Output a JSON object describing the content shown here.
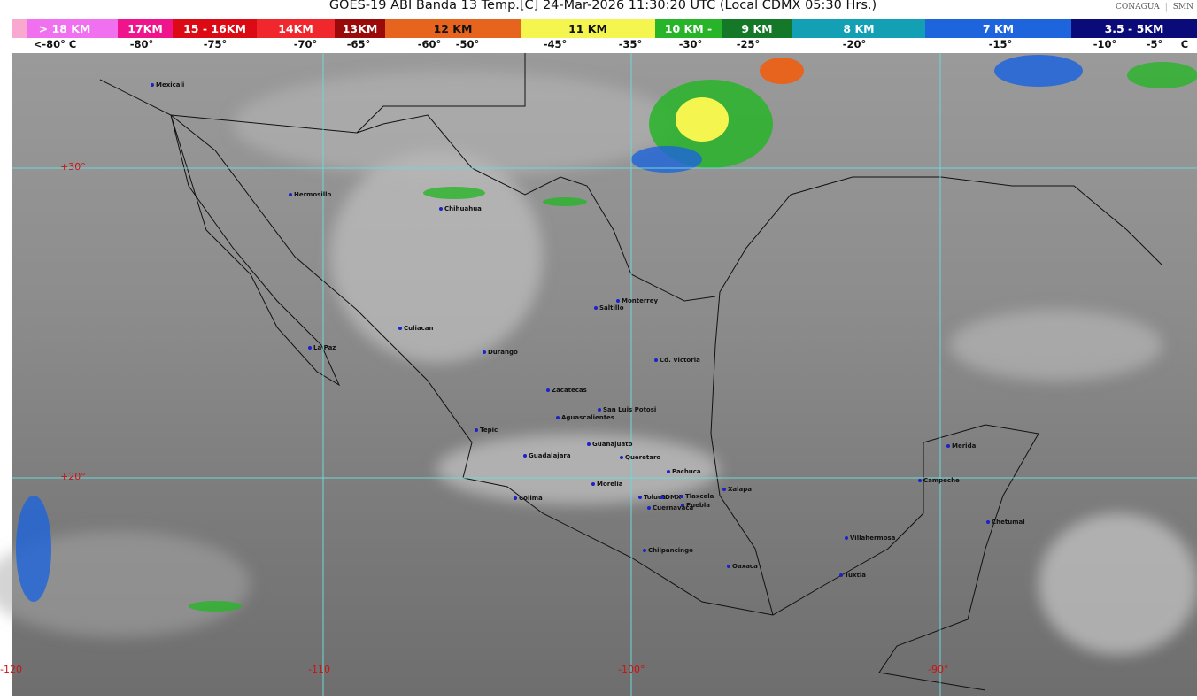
{
  "header": {
    "title": "GOES-19 ABI Banda 13 Temp.[C] 24-Mar-2026 11:30:20 UTC (Local CDMX  05:30 Hrs.)",
    "logos": [
      "CONAGUA",
      "SMN"
    ]
  },
  "legend": {
    "segments": [
      {
        "label": "> 18 KM",
        "color": "#f070f0"
      },
      {
        "label": "17KM",
        "color": "#f0148c"
      },
      {
        "label": "15 - 16KM",
        "color": "#dc0a14"
      },
      {
        "label": "14KM",
        "color": "#f0282d"
      },
      {
        "label": "13KM",
        "color": "#9b0a0a"
      },
      {
        "label": "12 KM",
        "color": "#e6641e"
      },
      {
        "label": "11 KM",
        "color": "#f5f550"
      },
      {
        "label": "10 KM -",
        "color": "#28b428"
      },
      {
        "label": "9 KM",
        "color": "#147828"
      },
      {
        "label": "8 KM",
        "color": "#14a0b4"
      },
      {
        "label": "7 KM",
        "color": "#1e64dc"
      },
      {
        "label": "3.5 - 5KM",
        "color": "#0a0a78"
      }
    ],
    "temps": [
      "<-80° C",
      "-80°",
      "-75°",
      "-70°",
      "-65°",
      "-60°",
      "-50°",
      "-45°",
      "-35°",
      "-30°",
      "-25°",
      "-20°",
      "-15°",
      "-10°",
      "-5°",
      "C"
    ]
  },
  "grid": {
    "lat": [
      "+30°",
      "+20°"
    ],
    "lon": [
      "-120",
      "-110",
      "-100°",
      "-90°"
    ]
  },
  "cities": [
    "Mexicali",
    "Hermosillo",
    "Chihuahua",
    "Culiacan",
    "La Paz",
    "Durango",
    "Saltillo",
    "Monterrey",
    "Cd. Victoria",
    "Zacatecas",
    "San Luis Potosi",
    "Aguascalientes",
    "Tepic",
    "Guanajuato",
    "Guadalajara",
    "Queretaro",
    "Pachuca",
    "Xalapa",
    "Morelia",
    "Colima",
    "Toluca",
    "CDMX",
    "Tlaxcala",
    "Puebla",
    "Cuernavaca",
    "Chilpancingo",
    "Oaxaca",
    "Villahermosa",
    "Tuxtla",
    "Merida",
    "Campeche",
    "Chetumal"
  ]
}
